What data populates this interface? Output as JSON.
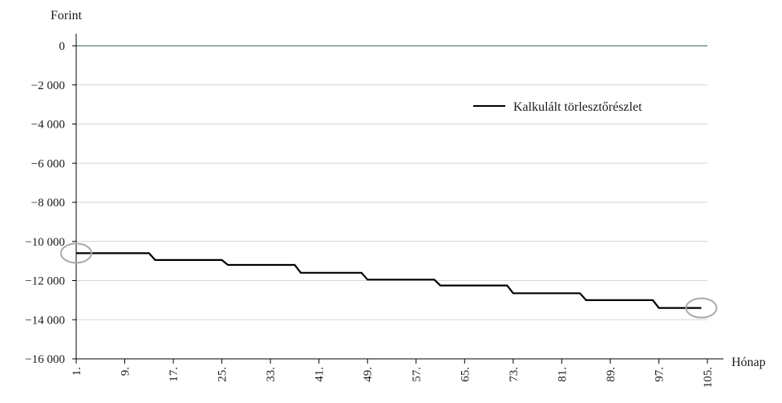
{
  "chart_data": {
    "type": "line",
    "ylabel": "Forint",
    "xlabel": "Hónap",
    "ylim": [
      -16000,
      0
    ],
    "yticks": [
      0,
      -2000,
      -4000,
      -6000,
      -8000,
      -10000,
      -12000,
      -14000,
      -16000
    ],
    "ytick_labels": [
      "0",
      "−2 000",
      "−4 000",
      "−6 000",
      "−8 000",
      "−10 000",
      "−12 000",
      "−14 000",
      "−16 000"
    ],
    "xlim": [
      1,
      105
    ],
    "xticks": [
      1,
      9,
      17,
      25,
      33,
      41,
      49,
      57,
      65,
      73,
      81,
      89,
      97,
      105
    ],
    "xtick_labels": [
      "1.",
      "9.",
      "17.",
      "25.",
      "33.",
      "41.",
      "49.",
      "57.",
      "65.",
      "73.",
      "81.",
      "89.",
      "97.",
      "105."
    ],
    "legend_position": "top-right",
    "grid": "horizontal",
    "series": [
      {
        "name": "Kalkulált törlesztőrészlet",
        "color": "#000000",
        "x": [
          1,
          13,
          14,
          25,
          26,
          37,
          38,
          48,
          49,
          60,
          61,
          72,
          73,
          84,
          85,
          96,
          97,
          104
        ],
        "y": [
          -10600,
          -10600,
          -10950,
          -10950,
          -11200,
          -11200,
          -11600,
          -11600,
          -11950,
          -11950,
          -12250,
          -12250,
          -12650,
          -12650,
          -13000,
          -13000,
          -13400,
          -13400
        ]
      }
    ],
    "annotations": [
      {
        "type": "circle-marker",
        "x": 1,
        "y": -10600,
        "color": "#aaaaaa"
      },
      {
        "type": "circle-marker",
        "x": 104,
        "y": -13400,
        "color": "#aaaaaa"
      }
    ]
  }
}
